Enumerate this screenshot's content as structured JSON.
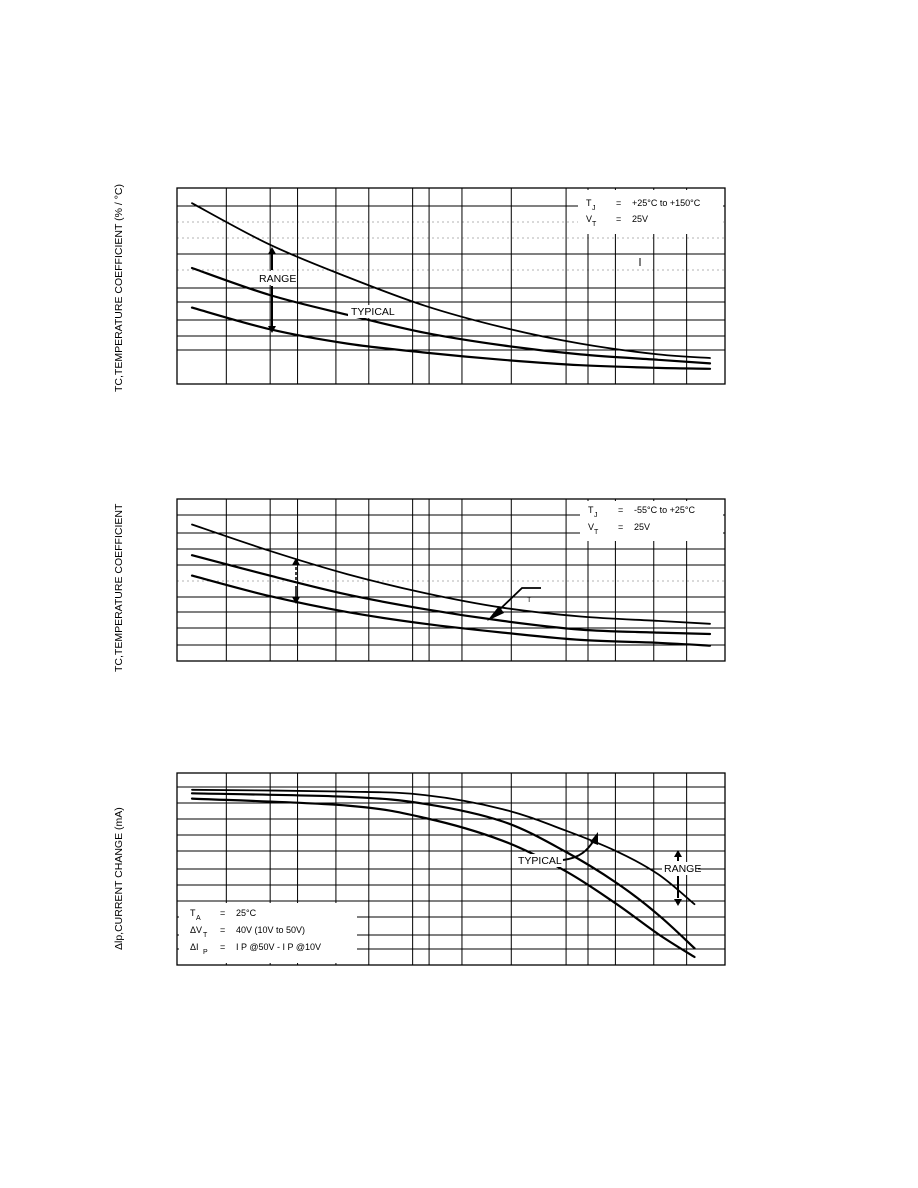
{
  "chart_data": [
    {
      "type": "line",
      "ylabel": "TC,TEMPERATURE COEFFICIENT (% / °C)",
      "xlabel": "",
      "grid": true,
      "log_x": true,
      "legend": {
        "position": "top-right",
        "line1": {
          "sym": "T",
          "sub": "J",
          "eq": "=",
          "val": "+25°C  to  +150°C"
        },
        "line2": {
          "sym": "V",
          "sub": "T",
          "eq": "=",
          "val": "25V"
        }
      },
      "annotations": {
        "range": "RANGE",
        "typical": "TYPICAL"
      },
      "series": [
        {
          "name": "",
          "x": [
            0.0,
            0.15,
            0.3,
            0.45,
            0.6,
            0.75,
            0.9,
            1.0
          ],
          "y": [
            0.96,
            0.73,
            0.55,
            0.39,
            0.27,
            0.18,
            0.12,
            0.1
          ]
        },
        {
          "name": "",
          "x": [
            0.0,
            0.15,
            0.3,
            0.45,
            0.6,
            0.75,
            0.9,
            1.0
          ],
          "y": [
            0.6,
            0.45,
            0.34,
            0.24,
            0.17,
            0.12,
            0.09,
            0.07
          ]
        },
        {
          "name": "",
          "x": [
            0.0,
            0.15,
            0.3,
            0.45,
            0.6,
            0.75,
            0.9,
            1.0
          ],
          "y": [
            0.38,
            0.26,
            0.18,
            0.13,
            0.09,
            0.06,
            0.045,
            0.04
          ]
        }
      ]
    },
    {
      "type": "line",
      "ylabel": "TC,TEMPERATURE COEFFICIENT",
      "xlabel": "",
      "grid": true,
      "log_x": true,
      "legend": {
        "position": "top-right",
        "line1": {
          "sym": "T",
          "sub": "J",
          "eq": "=",
          "val": "-55°C  to  +25°C"
        },
        "line2": {
          "sym": "V",
          "sub": "T",
          "eq": "=",
          "val": "25V"
        }
      },
      "annotations": {
        "typical": "T"
      },
      "series": [
        {
          "name": "",
          "x": [
            0.0,
            0.15,
            0.3,
            0.45,
            0.6,
            0.75,
            0.9,
            1.0
          ],
          "y": [
            0.88,
            0.7,
            0.54,
            0.41,
            0.31,
            0.25,
            0.22,
            0.2
          ]
        },
        {
          "name": "",
          "x": [
            0.0,
            0.15,
            0.3,
            0.45,
            0.6,
            0.75,
            0.9,
            1.0
          ],
          "y": [
            0.67,
            0.53,
            0.4,
            0.3,
            0.22,
            0.16,
            0.14,
            0.13
          ]
        },
        {
          "name": "",
          "x": [
            0.0,
            0.15,
            0.3,
            0.45,
            0.6,
            0.75,
            0.9,
            1.0
          ],
          "y": [
            0.53,
            0.39,
            0.28,
            0.2,
            0.14,
            0.09,
            0.07,
            0.05
          ]
        }
      ]
    },
    {
      "type": "line",
      "ylabel": "Δlp,CURRENT CHANGE (mA)",
      "xlabel": "",
      "grid": true,
      "log_x": true,
      "legend": {
        "position": "bottom-left",
        "line1": {
          "sym": "T",
          "sub": "A",
          "eq": "=",
          "val": "25°C"
        },
        "line2": {
          "sym": "ΔV",
          "sub": "T",
          "eq": "=",
          "val": "40V  (10V  to  50V)"
        },
        "line3": {
          "sym": "ΔI",
          "sub": "P",
          "eq": "=",
          "val": "I P @50V  -  I P @10V"
        }
      },
      "annotations": {
        "range": "RANGE",
        "typical": "TYPICAL"
      },
      "series": [
        {
          "name": "",
          "x": [
            0.0,
            0.3,
            0.45,
            0.6,
            0.72,
            0.82,
            0.9,
            0.97
          ],
          "y": [
            0.95,
            0.94,
            0.92,
            0.84,
            0.72,
            0.6,
            0.47,
            0.3
          ]
        },
        {
          "name": "",
          "x": [
            0.0,
            0.3,
            0.45,
            0.6,
            0.72,
            0.82,
            0.9,
            0.97
          ],
          "y": [
            0.93,
            0.91,
            0.87,
            0.77,
            0.6,
            0.42,
            0.24,
            0.05
          ]
        },
        {
          "name": "",
          "x": [
            0.0,
            0.3,
            0.45,
            0.6,
            0.72,
            0.82,
            0.9,
            0.97
          ],
          "y": [
            0.9,
            0.86,
            0.79,
            0.66,
            0.49,
            0.3,
            0.13,
            0.0
          ]
        }
      ]
    }
  ]
}
